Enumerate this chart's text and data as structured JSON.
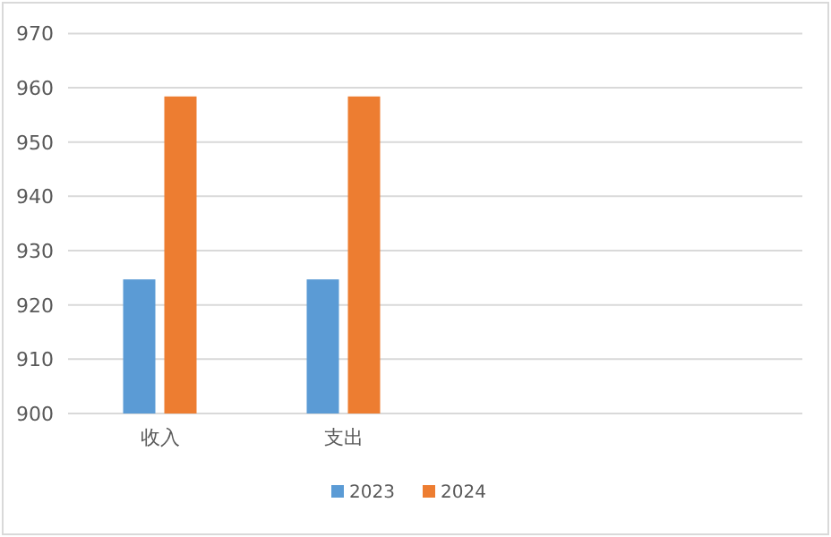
{
  "chart_data": {
    "type": "bar",
    "categories": [
      "收入",
      "支出",
      null,
      null
    ],
    "series": [
      {
        "name": "2023",
        "color": "#5b9bd5",
        "values": [
          924.7,
          924.7,
          null,
          null
        ]
      },
      {
        "name": "2024",
        "color": "#ed7d31",
        "values": [
          958.4,
          958.4,
          null,
          null
        ]
      }
    ],
    "ylim": [
      900,
      970
    ],
    "yticks": [
      900,
      910,
      920,
      930,
      940,
      950,
      960,
      970
    ],
    "grid": "y",
    "legend": "bottom"
  }
}
